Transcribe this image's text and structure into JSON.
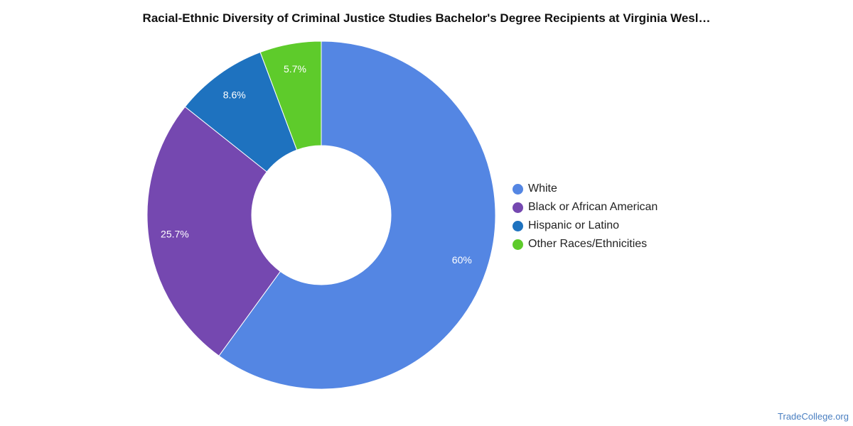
{
  "chart_data": {
    "type": "pie",
    "variant": "donut",
    "title": "Racial-Ethnic Diversity of Criminal Justice Studies Bachelor's Degree Recipients at Virginia Wesl…",
    "categories": [
      "White",
      "Black or African American",
      "Hispanic or Latino",
      "Other Races/Ethnicities"
    ],
    "values": [
      60,
      25.7,
      8.6,
      5.7
    ],
    "labels": [
      "60%",
      "25.7%",
      "8.6%",
      "5.7%"
    ],
    "colors": [
      "#5486e3",
      "#7548b0",
      "#1e72bf",
      "#5ecb2b"
    ],
    "legend_position": "right"
  },
  "watermark": "TradeCollege.org"
}
